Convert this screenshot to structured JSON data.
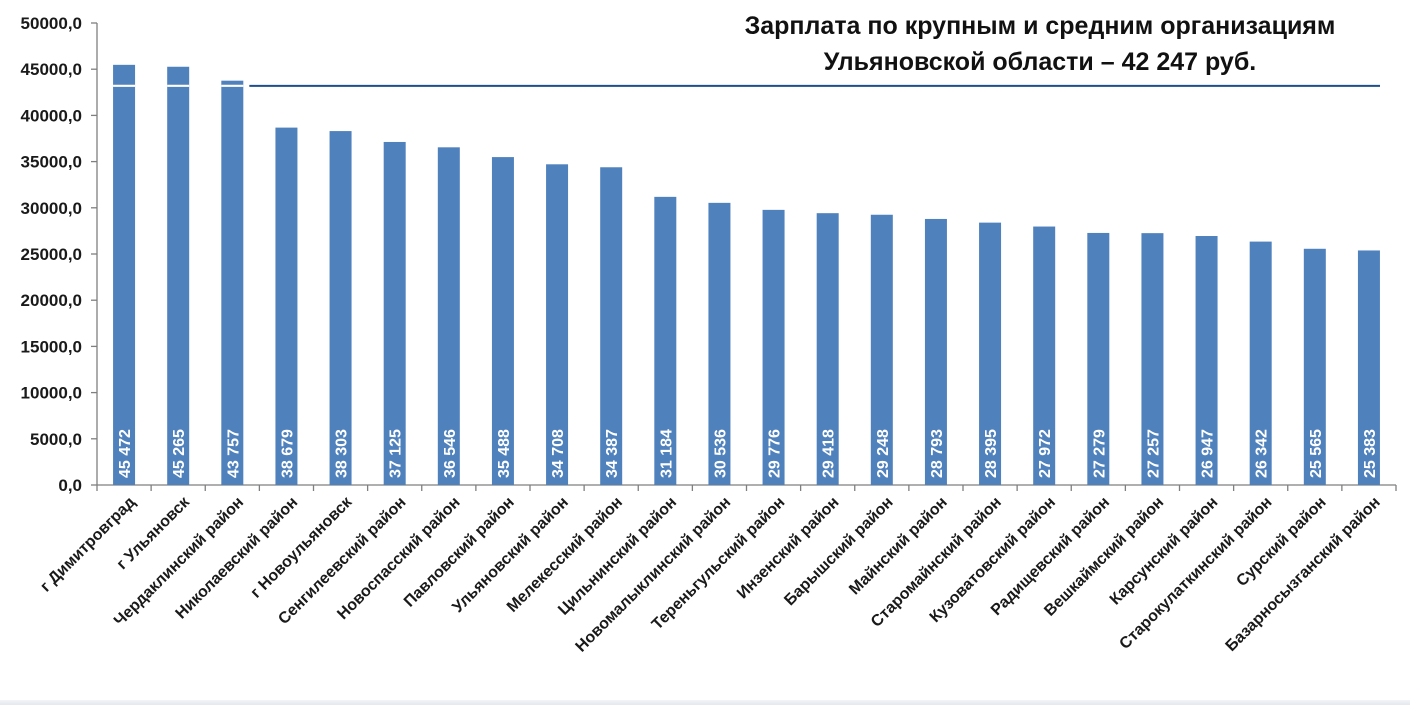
{
  "chart_data": {
    "type": "bar",
    "title_lines": [
      "Зарплата по крупным и средним организациям",
      "Ульяновской области – 42 247 руб."
    ],
    "categories": [
      "г Димитровград",
      "г Ульяновск",
      "Чердаклинский район",
      "Николаевский район",
      "г Новоульяновск",
      "Сенгилеевский район",
      "Новоспасский район",
      "Павловский район",
      "Ульяновский район",
      "Мелекесский район",
      "Цильнинский район",
      "Новомалыклинский район",
      "Тереньгульский район",
      "Инзенский район",
      "Барышский район",
      "Майнский район",
      "Старомайнский район",
      "Кузоватовский район",
      "Радищевский район",
      "Вешкаймский район",
      "Карсунский район",
      "Старокулаткинский район",
      "Сурский район",
      "Базарносызганский район"
    ],
    "values": [
      45472,
      45265,
      43757,
      38679,
      38303,
      37125,
      36546,
      35488,
      34708,
      34387,
      31184,
      30536,
      29776,
      29418,
      29248,
      28793,
      28395,
      27972,
      27279,
      27257,
      26947,
      26342,
      25565,
      25383
    ],
    "value_labels": [
      "45 472",
      "45 265",
      "43 757",
      "38 679",
      "38 303",
      "37 125",
      "36 546",
      "35 488",
      "34 708",
      "34 387",
      "31 184",
      "30 536",
      "29 776",
      "29 418",
      "29 248",
      "28 793",
      "28 395",
      "27 972",
      "27 279",
      "27 257",
      "26 947",
      "26 342",
      "25 565",
      "25 383"
    ],
    "y_ticks": [
      "0,0",
      "5000,0",
      "10000,0",
      "15000,0",
      "20000,0",
      "25000,0",
      "30000,0",
      "35000,0",
      "40000,0",
      "45000,0",
      "50000,0"
    ],
    "ylim": [
      0,
      50000
    ],
    "reference_line": 43200,
    "bar_color": "#4f81bd",
    "line_color": "#1f4e8c",
    "grid": false,
    "legend": "none"
  }
}
